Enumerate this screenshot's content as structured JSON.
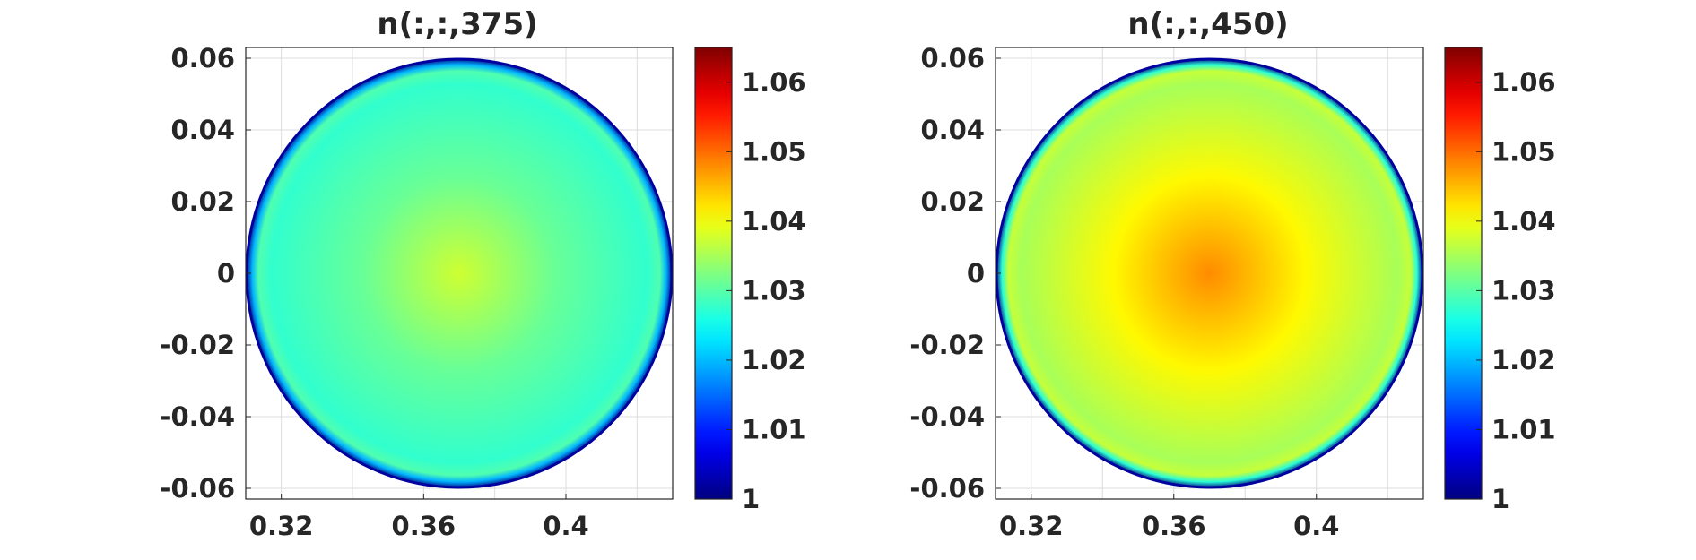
{
  "chart_data": [
    {
      "type": "heatmap",
      "title": "n(:,:,375)",
      "xlabel": "",
      "ylabel": "",
      "xlim": [
        0.31,
        0.43
      ],
      "ylim": [
        -0.063,
        0.063
      ],
      "xticks": [
        0.32,
        0.36,
        0.4
      ],
      "xtick_labels": [
        "0.32",
        "0.36",
        "0.4"
      ],
      "yticks": [
        -0.06,
        -0.04,
        -0.02,
        0,
        0.02,
        0.04,
        0.06
      ],
      "ytick_labels": [
        "-0.06",
        "-0.04",
        "-0.02",
        "0",
        "0.02",
        "0.04",
        "0.06"
      ],
      "grid": true,
      "domain": {
        "shape": "circle",
        "center": [
          0.37,
          0.0
        ],
        "radius": 0.06
      },
      "values": {
        "center": 1.0375,
        "mid": 1.031,
        "edge": 1.0275,
        "boundary": 1.0
      },
      "colorbar": {
        "colormap": "jet",
        "clim": [
          1.0,
          1.065
        ],
        "ticks": [
          1.0,
          1.01,
          1.02,
          1.03,
          1.04,
          1.05,
          1.06
        ],
        "tick_labels": [
          "1",
          "1.01",
          "1.02",
          "1.03",
          "1.04",
          "1.05",
          "1.06"
        ]
      }
    },
    {
      "type": "heatmap",
      "title": "n(:,:,450)",
      "xlabel": "",
      "ylabel": "",
      "xlim": [
        0.31,
        0.43
      ],
      "ylim": [
        -0.063,
        0.063
      ],
      "xticks": [
        0.32,
        0.36,
        0.4
      ],
      "xtick_labels": [
        "0.32",
        "0.36",
        "0.4"
      ],
      "yticks": [
        -0.06,
        -0.04,
        -0.02,
        0,
        0.02,
        0.04,
        0.06
      ],
      "ytick_labels": [
        "-0.06",
        "-0.04",
        "-0.02",
        "0",
        "0.02",
        "0.04",
        "0.06"
      ],
      "grid": true,
      "domain": {
        "shape": "circle",
        "center": [
          0.37,
          0.0
        ],
        "radius": 0.06
      },
      "values": {
        "center": 1.048,
        "mid": 1.041,
        "edge": 1.035,
        "boundary": 1.0
      },
      "colorbar": {
        "colormap": "jet",
        "clim": [
          1.0,
          1.065
        ],
        "ticks": [
          1.0,
          1.01,
          1.02,
          1.03,
          1.04,
          1.05,
          1.06
        ],
        "tick_labels": [
          "1",
          "1.01",
          "1.02",
          "1.03",
          "1.04",
          "1.05",
          "1.06"
        ]
      }
    }
  ]
}
